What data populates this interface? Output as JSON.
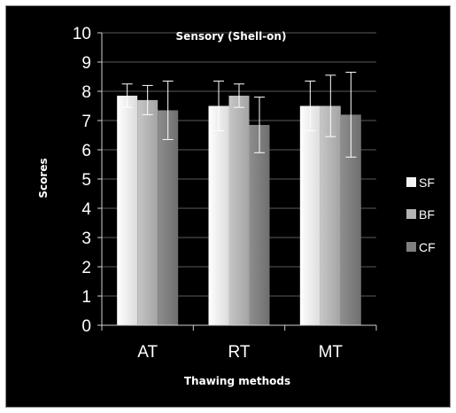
{
  "chart_data": {
    "type": "bar",
    "title": "Sensory (Shell-on)",
    "xlabel": "Thawing methods",
    "ylabel": "Scores",
    "categories": [
      "AT",
      "RT",
      "MT"
    ],
    "ylim": [
      0,
      10
    ],
    "yticks": [
      0,
      1,
      2,
      3,
      4,
      5,
      6,
      7,
      8,
      9,
      10
    ],
    "grid": true,
    "legend_position": "right",
    "series": [
      {
        "name": "SF",
        "values": [
          7.85,
          7.5,
          7.5
        ],
        "errors": [
          0.4,
          0.85,
          0.85
        ],
        "color": "#f4f4f4"
      },
      {
        "name": "BF",
        "values": [
          7.7,
          7.85,
          7.5
        ],
        "errors": [
          0.5,
          0.4,
          1.05
        ],
        "color": "#b3b3b3"
      },
      {
        "name": "CF",
        "values": [
          7.35,
          6.85,
          7.2
        ],
        "errors": [
          1.0,
          0.95,
          1.45
        ],
        "color": "#7f7f7f"
      }
    ]
  }
}
